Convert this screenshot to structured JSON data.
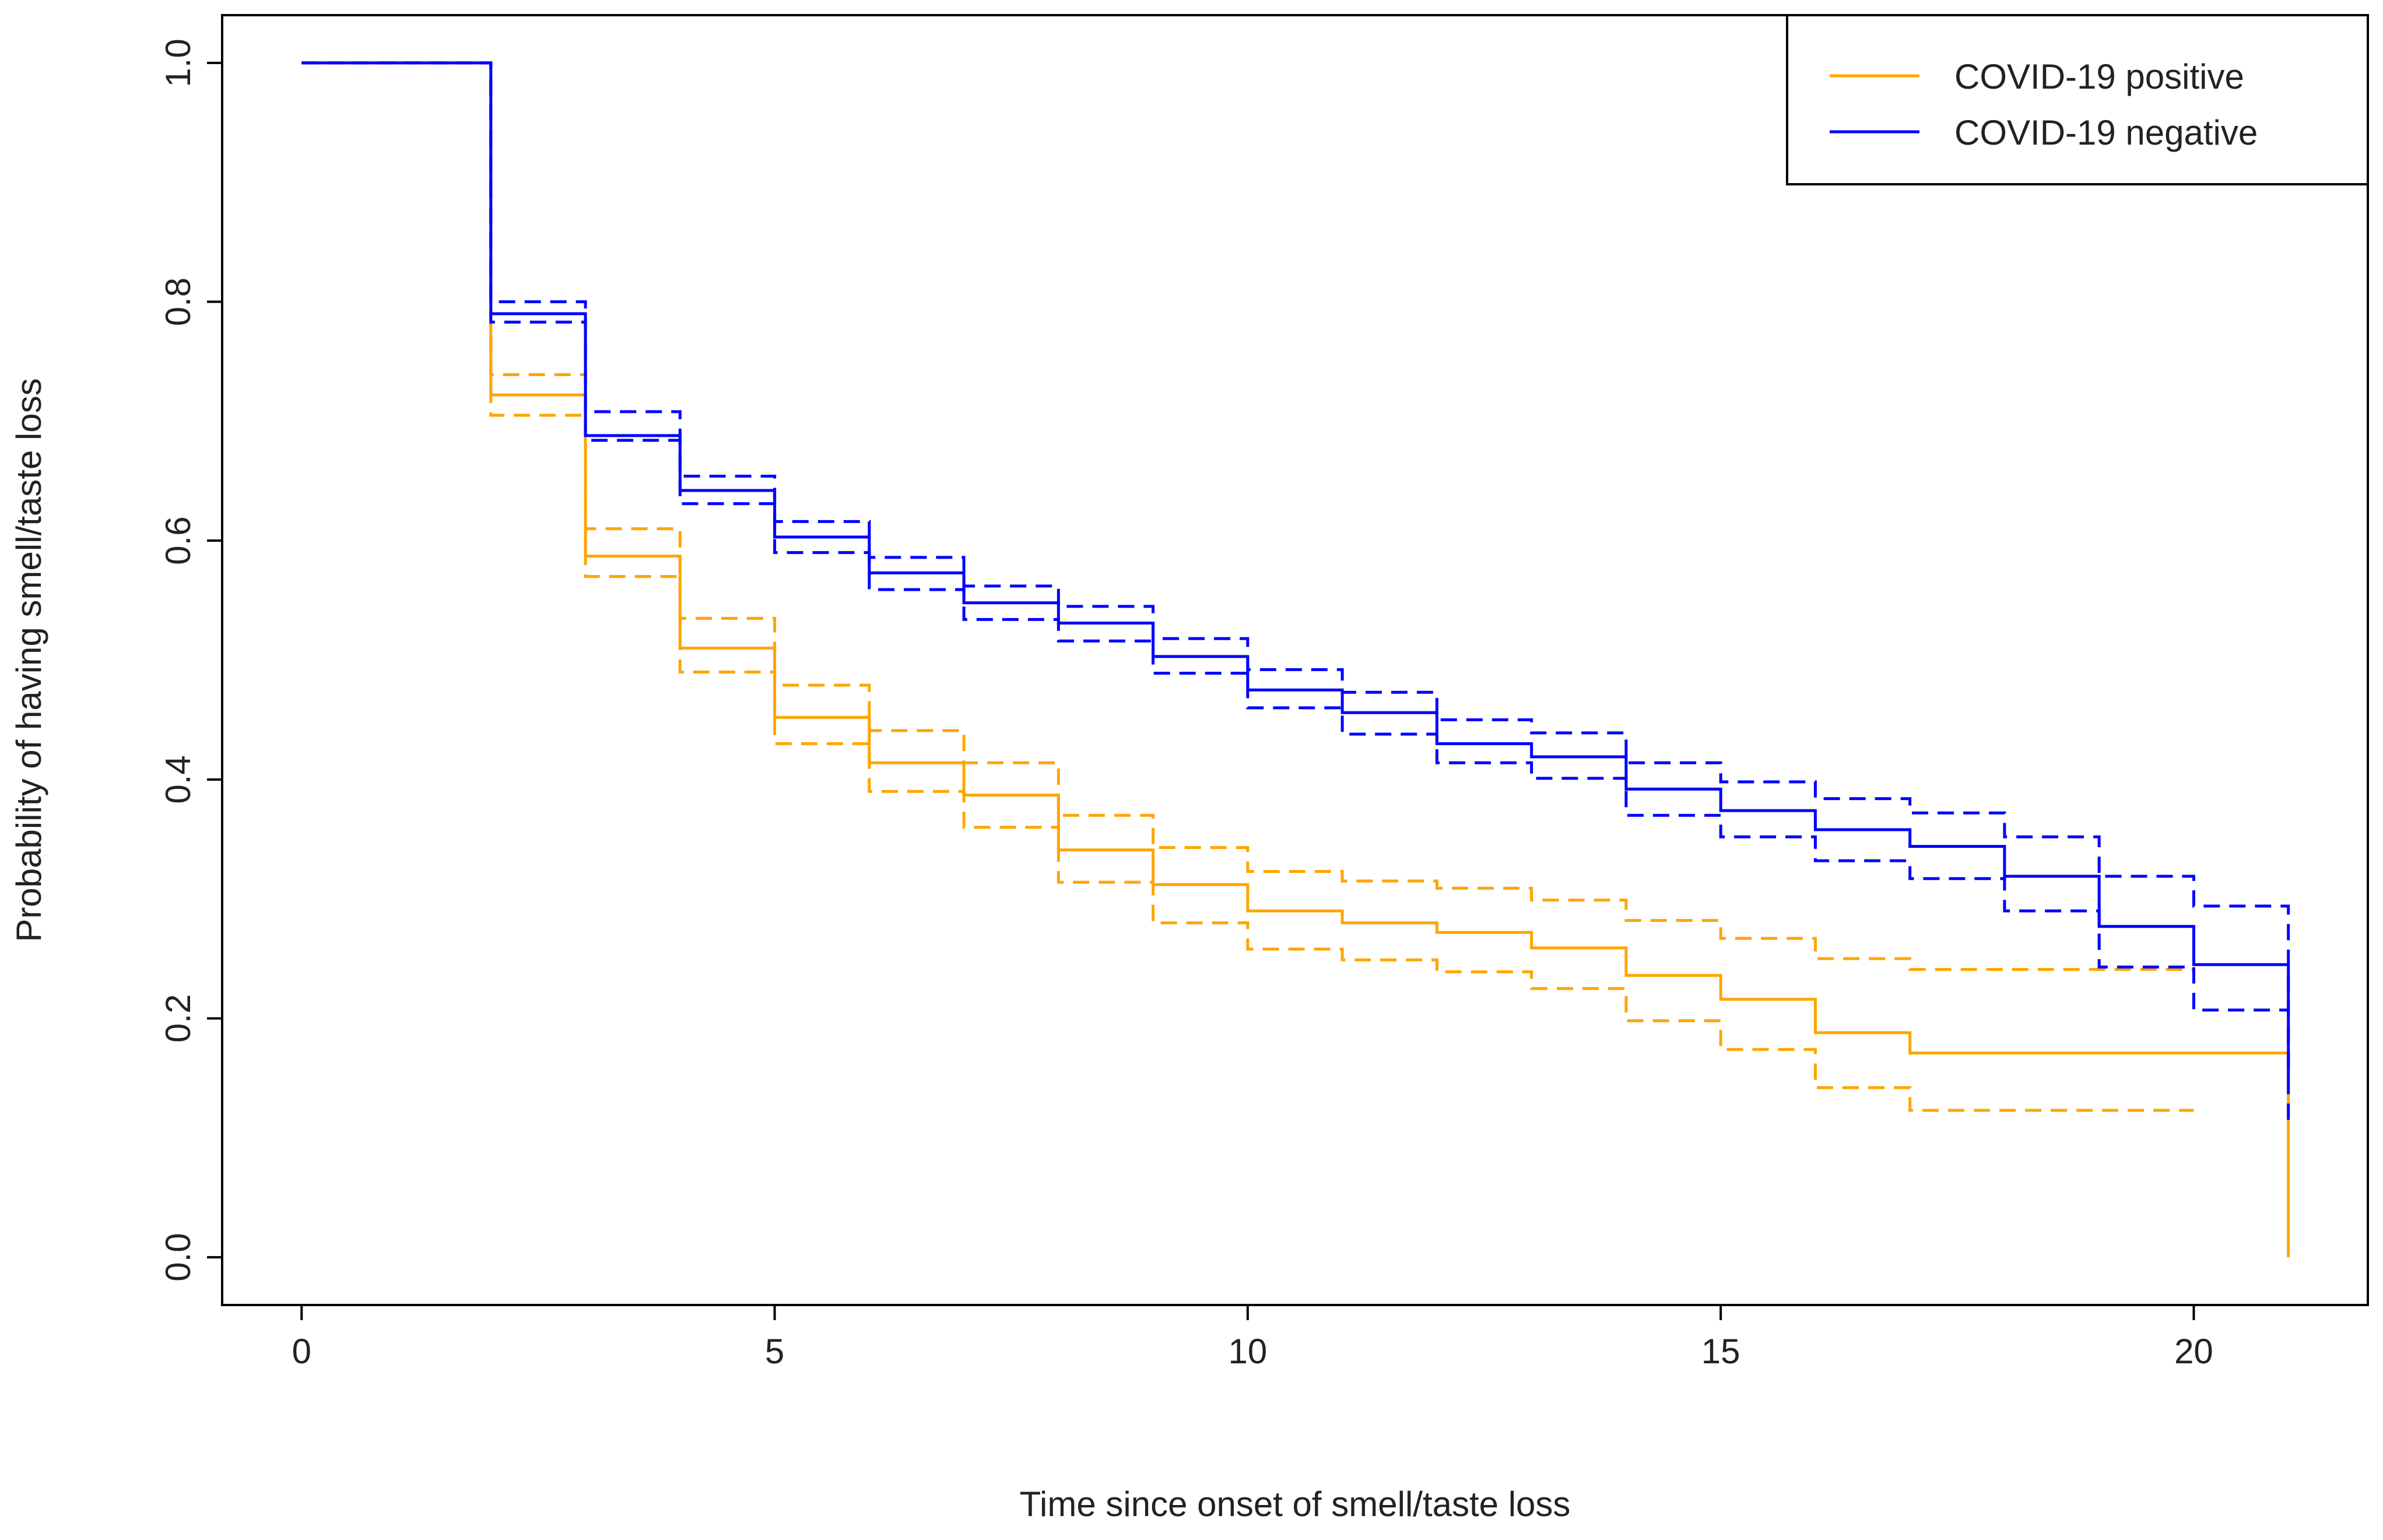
{
  "chart_data": {
    "type": "step",
    "x_label": "Time since onset of smell/taste loss",
    "y_label": "Probability of having smell/taste loss",
    "x": [
      0,
      1,
      2,
      3,
      4,
      5,
      6,
      7,
      8,
      9,
      10,
      11,
      12,
      13,
      14,
      15,
      16,
      17,
      18,
      19,
      20,
      21
    ],
    "xlim": [
      -0.84,
      21.84
    ],
    "xticks": [
      0,
      5,
      10,
      15,
      20
    ],
    "ylim": [
      -0.04,
      1.04
    ],
    "yticks": [
      {
        "value": 0,
        "label": "0.0"
      },
      0.2,
      0.4,
      0.6,
      0.8,
      {
        "value": 1,
        "label": "1.0"
      }
    ],
    "legend": "top-right",
    "series": [
      {
        "name": "COVID-19 positive",
        "color": "#ffa500",
        "values": [
          1,
          1,
          0.722,
          0.587,
          0.51,
          0.452,
          0.414,
          0.387,
          0.341,
          0.312,
          0.29,
          0.28,
          0.272,
          0.259,
          0.236,
          0.216,
          0.188,
          0.171,
          0.171,
          0.171,
          0.171,
          0
        ],
        "upper": [
          1,
          1,
          0.739,
          0.61,
          0.535,
          0.479,
          0.441,
          0.414,
          0.37,
          0.343,
          0.323,
          0.315,
          0.309,
          0.299,
          0.282,
          0.267,
          0.25,
          0.241,
          0.241,
          0.241,
          0.241,
          null
        ],
        "lower": [
          1,
          1,
          0.705,
          0.57,
          0.49,
          0.43,
          0.39,
          0.36,
          0.314,
          0.28,
          0.258,
          0.249,
          0.239,
          0.225,
          0.198,
          0.174,
          0.142,
          0.123,
          0.123,
          0.123,
          0.123,
          null
        ]
      },
      {
        "name": "COVID-19 negative",
        "color": "#0000ff",
        "values": [
          1,
          1,
          0.79,
          0.688,
          0.642,
          0.603,
          0.573,
          0.548,
          0.531,
          0.503,
          0.475,
          0.456,
          0.43,
          0.419,
          0.392,
          0.374,
          0.358,
          0.344,
          0.319,
          0.277,
          0.245,
          0.15
        ],
        "upper": [
          1,
          1,
          0.8,
          0.708,
          0.654,
          0.616,
          0.586,
          0.562,
          0.545,
          0.518,
          0.492,
          0.473,
          0.45,
          0.439,
          0.414,
          0.398,
          0.384,
          0.372,
          0.352,
          0.319,
          0.294,
          0.15
        ],
        "lower": [
          1,
          1,
          0.783,
          0.684,
          0.631,
          0.59,
          0.559,
          0.534,
          0.516,
          0.489,
          0.46,
          0.438,
          0.414,
          0.401,
          0.37,
          0.352,
          0.332,
          0.317,
          0.29,
          0.243,
          0.207,
          0.11
        ]
      }
    ]
  }
}
